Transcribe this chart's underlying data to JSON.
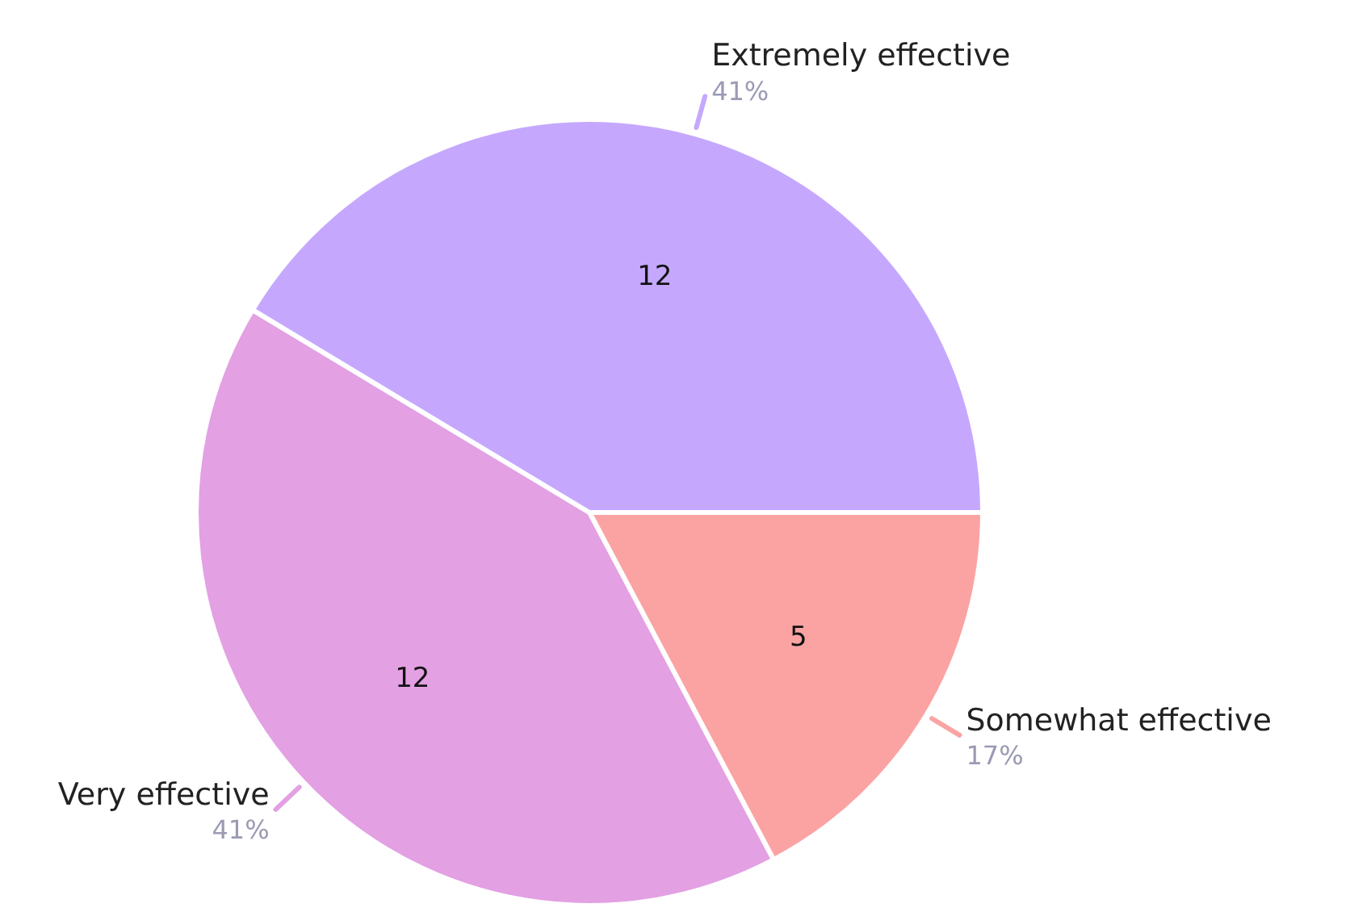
{
  "chart_data": {
    "type": "pie",
    "categories": [
      "Somewhat effective",
      "Very effective",
      "Extremely effective"
    ],
    "values": [
      5,
      12,
      12
    ],
    "colors": [
      "#fba3a3",
      "#e3a0e3",
      "#c5a8fe"
    ],
    "data_labels": true,
    "annotations": [
      {
        "text": "17%",
        "x": "Somewhat effective"
      },
      {
        "text": "41%",
        "x": "Very effective"
      },
      {
        "text": "41%",
        "x": "Extremely effective"
      }
    ],
    "legend": false
  }
}
